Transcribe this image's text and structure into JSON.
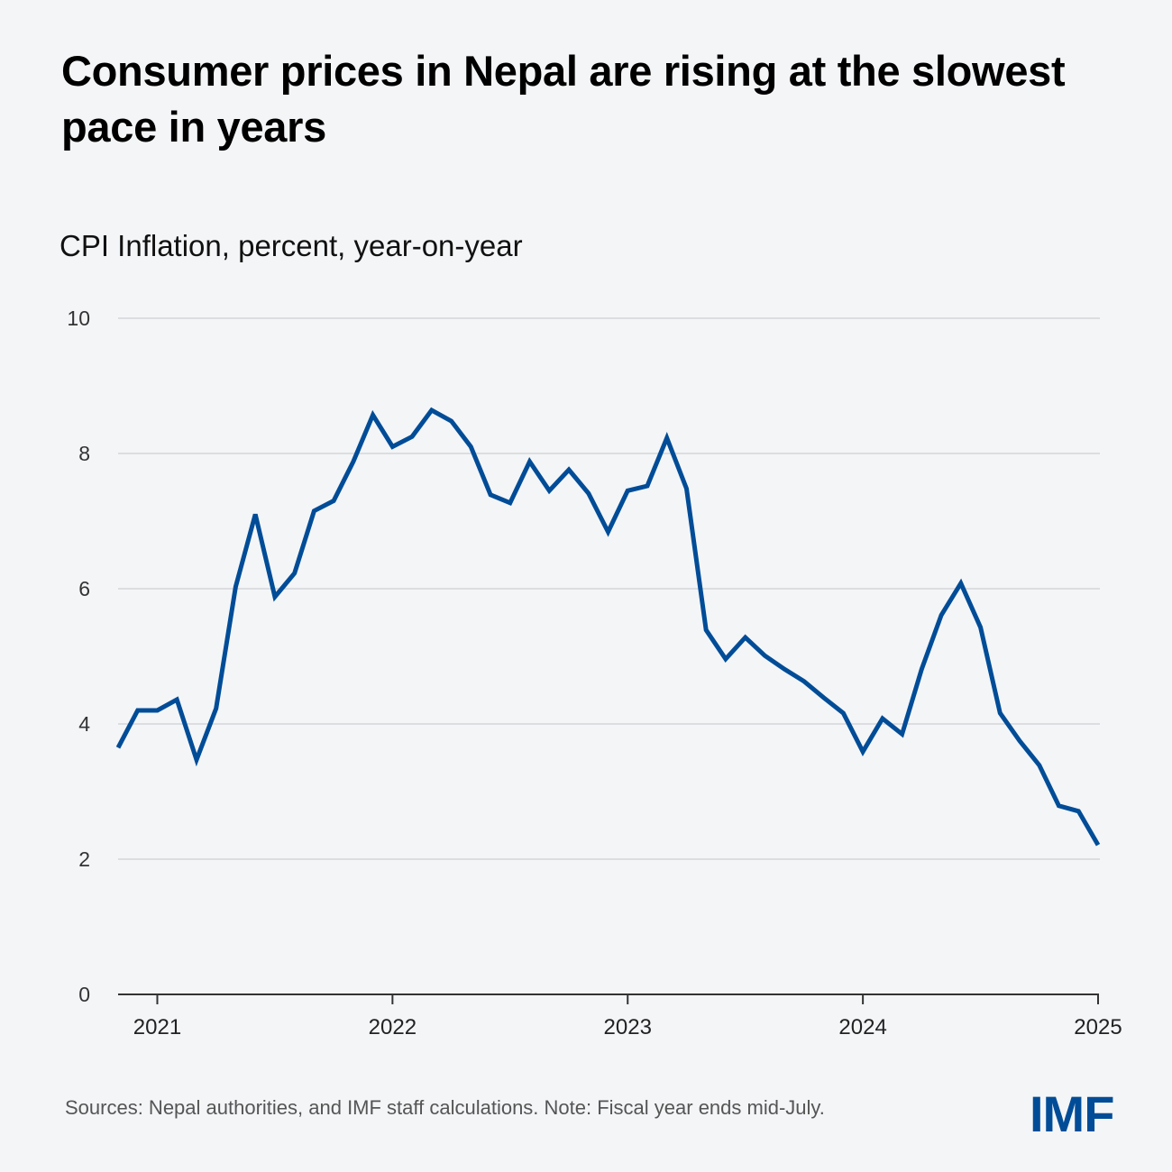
{
  "title": "Consumer prices in Nepal are rising at the slowest pace in years",
  "subtitle": "CPI Inflation, percent, year-on-year",
  "source": "Sources: Nepal authorities, and IMF staff calculations. Note: Fiscal year ends mid-July.",
  "logo": "IMF",
  "colors": {
    "background": "#f3f5f7",
    "line": "#004c97",
    "grid": "#dcdde0",
    "axis": "#333333"
  },
  "chart_data": {
    "type": "line",
    "title": "Consumer prices in Nepal are rising at the slowest pace in years",
    "ylabel": "CPI Inflation, percent, year-on-year",
    "xlabel": "",
    "ylim": [
      0,
      10
    ],
    "yticks": [
      0,
      2,
      4,
      6,
      8,
      10
    ],
    "xlim": [
      "2020-11",
      "2025-01"
    ],
    "xticks": [
      {
        "date": "2021-01",
        "label": "2021"
      },
      {
        "date": "2022-01",
        "label": "2022"
      },
      {
        "date": "2023-01",
        "label": "2023"
      },
      {
        "date": "2024-01",
        "label": "2024"
      },
      {
        "date": "2025-01",
        "label": "2025"
      }
    ],
    "grid": true,
    "x": [
      "2020-11",
      "2020-12",
      "2021-01",
      "2021-02",
      "2021-03",
      "2021-04",
      "2021-05",
      "2021-06",
      "2021-07",
      "2021-08",
      "2021-09",
      "2021-10",
      "2021-11",
      "2021-12",
      "2022-01",
      "2022-02",
      "2022-03",
      "2022-04",
      "2022-05",
      "2022-06",
      "2022-07",
      "2022-08",
      "2022-09",
      "2022-10",
      "2022-11",
      "2022-12",
      "2023-01",
      "2023-02",
      "2023-03",
      "2023-04",
      "2023-05",
      "2023-06",
      "2023-07",
      "2023-08",
      "2023-09",
      "2023-10",
      "2023-11",
      "2023-12",
      "2024-01",
      "2024-02",
      "2024-03",
      "2024-04",
      "2024-05",
      "2024-06",
      "2024-07",
      "2024-08",
      "2024-09",
      "2024-10",
      "2024-11",
      "2024-12",
      "2025-01"
    ],
    "series": [
      {
        "values": [
          3.65,
          4.2,
          4.2,
          4.36,
          3.47,
          4.23,
          6.03,
          7.1,
          5.88,
          6.23,
          7.15,
          7.3,
          7.88,
          8.57,
          8.1,
          8.25,
          8.64,
          8.48,
          8.1,
          7.39,
          7.27,
          7.88,
          7.45,
          7.76,
          7.41,
          6.84,
          7.45,
          7.52,
          8.23,
          7.48,
          5.39,
          4.96,
          5.28,
          5.01,
          4.81,
          4.63,
          4.39,
          4.16,
          3.59,
          4.08,
          3.85,
          4.81,
          5.61,
          6.08,
          5.43,
          4.16,
          3.75,
          3.39,
          2.79,
          2.71,
          2.21
        ]
      }
    ]
  }
}
